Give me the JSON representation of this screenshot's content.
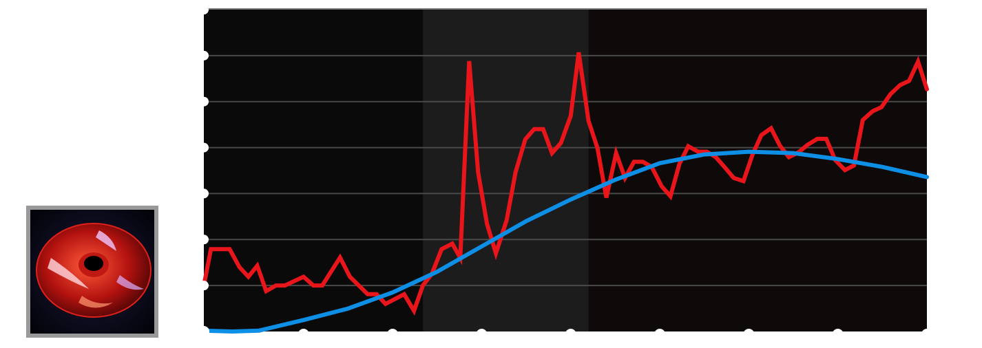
{
  "thumbnail": {
    "icon": "red-led-case-fan-photo",
    "border_color": "#999999"
  },
  "chart_data": {
    "type": "line",
    "title": "",
    "xlabel": "",
    "ylabel": "",
    "xlim": [
      -0.12,
      8
    ],
    "ylim": [
      0,
      7
    ],
    "xticks": [
      1,
      2,
      3,
      4,
      5,
      6,
      7,
      8
    ],
    "yticks": [
      0,
      1,
      2,
      3,
      4,
      5,
      6,
      7
    ],
    "grid": true,
    "background_color": "#0a0a0a",
    "highlight_band": {
      "x": [
        2.34,
        4.2
      ],
      "color": "#1c1c1c"
    },
    "series": [
      {
        "color": "#e8161b",
        "x": [
          -0.12,
          -0.04,
          0.17,
          0.28,
          0.38,
          0.48,
          0.58,
          0.69,
          0.79,
          1.0,
          1.11,
          1.21,
          1.41,
          1.52,
          1.72,
          1.82,
          1.92,
          2.13,
          2.24,
          2.34,
          2.44,
          2.55,
          2.67,
          2.76,
          2.86,
          2.96,
          3.06,
          3.16,
          3.28,
          3.38,
          3.49,
          3.59,
          3.69,
          3.79,
          3.89,
          4.0,
          4.09,
          4.2,
          4.3,
          4.4,
          4.51,
          4.61,
          4.71,
          4.81,
          4.91,
          5.02,
          5.12,
          5.22,
          5.32,
          5.43,
          5.53,
          5.63,
          5.73,
          5.83,
          5.94,
          6.04,
          6.14,
          6.25,
          6.35,
          6.45,
          6.56,
          6.66,
          6.77,
          6.87,
          6.97,
          7.08,
          7.18,
          7.28,
          7.39,
          7.49,
          7.59,
          7.7,
          7.8,
          7.9,
          8.0
        ],
        "y": [
          1.0,
          1.79,
          1.79,
          1.4,
          1.19,
          1.43,
          0.88,
          1.0,
          1.0,
          1.19,
          1.0,
          1.0,
          1.61,
          1.19,
          0.81,
          0.81,
          0.6,
          0.81,
          0.45,
          1.0,
          1.25,
          1.79,
          1.91,
          1.6,
          5.88,
          3.46,
          2.34,
          1.7,
          2.42,
          3.46,
          4.18,
          4.4,
          4.4,
          3.88,
          4.1,
          4.69,
          6.07,
          4.58,
          3.99,
          2.91,
          3.88,
          3.34,
          3.69,
          3.69,
          3.58,
          3.16,
          2.94,
          3.64,
          4.03,
          3.91,
          3.91,
          3.79,
          3.57,
          3.34,
          3.27,
          3.84,
          4.27,
          4.42,
          4.04,
          3.79,
          3.9,
          4.06,
          4.19,
          4.19,
          3.73,
          3.51,
          3.61,
          4.6,
          4.79,
          4.88,
          5.16,
          5.36,
          5.45,
          5.87,
          5.27
        ]
      },
      {
        "color": "#0e8fe6",
        "x": [
          -0.12,
          0.2,
          0.5,
          1,
          1.5,
          2,
          2.5,
          3,
          3.5,
          4,
          4.5,
          5,
          5.5,
          6,
          6.5,
          7,
          7.5,
          8
        ],
        "y": [
          0.02,
          0,
          0.02,
          0.25,
          0.5,
          0.85,
          1.3,
          1.85,
          2.4,
          2.87,
          3.3,
          3.66,
          3.85,
          3.91,
          3.88,
          3.75,
          3.58,
          3.36
        ]
      }
    ]
  }
}
